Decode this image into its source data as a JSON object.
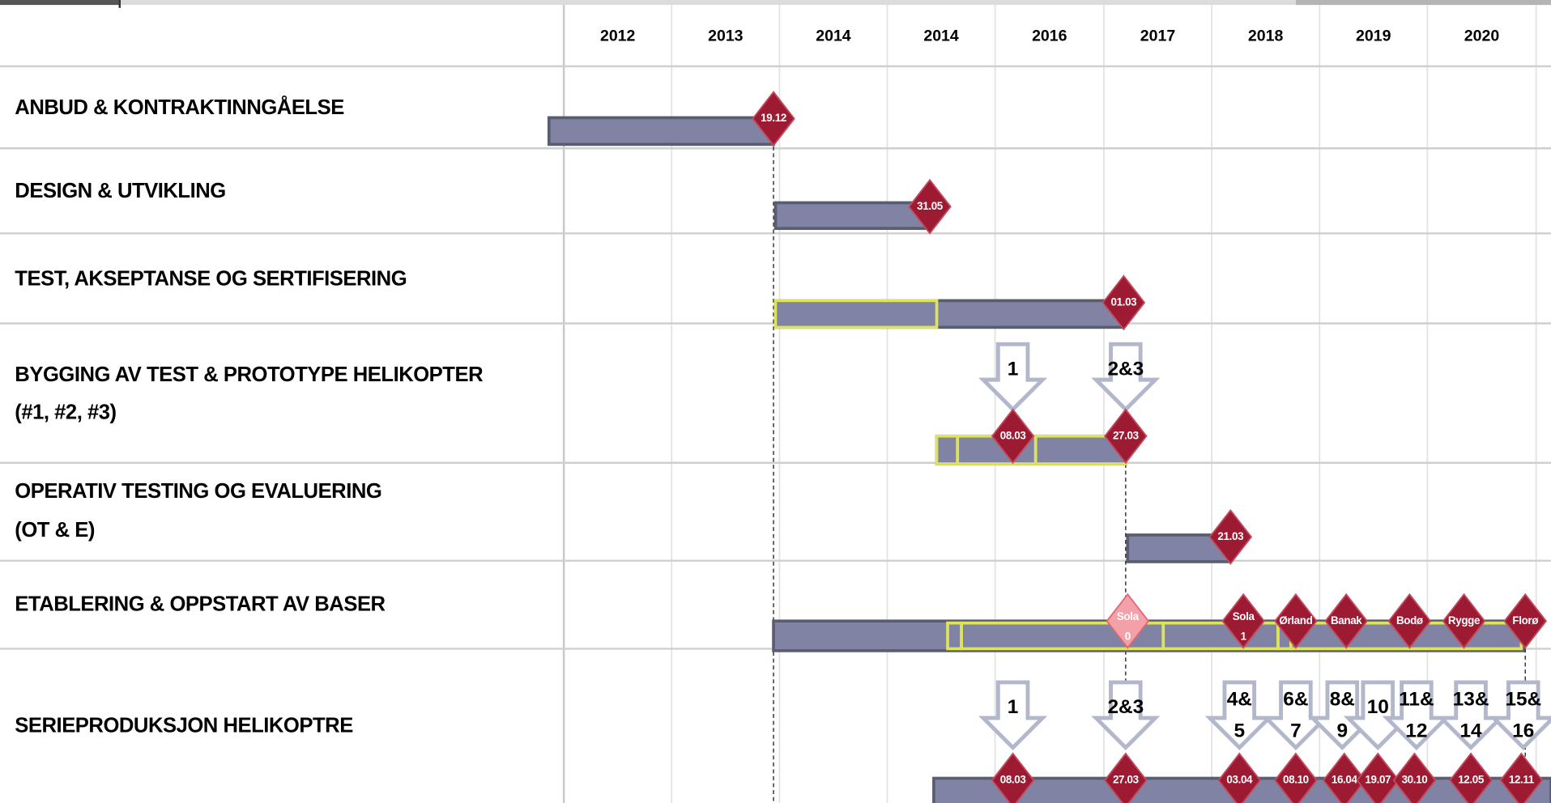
{
  "header": {
    "years": [
      "2012",
      "2013",
      "2014",
      "2014",
      "2016",
      "2017",
      "2018",
      "2019",
      "2020"
    ]
  },
  "rows": [
    {
      "label": [
        "ANBUD & KONTRAKTINNGÅELSE"
      ],
      "milestones": [
        {
          "label": [
            "19.12"
          ]
        }
      ],
      "arrows": []
    },
    {
      "label": [
        "DESIGN & UTVIKLING"
      ],
      "milestones": [
        {
          "label": [
            "31.05"
          ]
        }
      ],
      "arrows": []
    },
    {
      "label": [
        "TEST, AKSEPTANSE OG SERTIFISERING"
      ],
      "milestones": [
        {
          "label": [
            "01.03"
          ]
        }
      ],
      "arrows": []
    },
    {
      "label": [
        "BYGGING  AV TEST & PROTOTYPE HELIKOPTER",
        "(#1, #2, #3)"
      ],
      "milestones": [
        {
          "label": [
            "08.03"
          ]
        },
        {
          "label": [
            "27.03"
          ]
        }
      ],
      "arrows": [
        {
          "label": [
            "1"
          ]
        },
        {
          "label": [
            "2&3"
          ]
        }
      ]
    },
    {
      "label": [
        "OPERATIV TESTING OG EVALUERING",
        "(OT & E)"
      ],
      "milestones": [
        {
          "label": [
            "21.03"
          ]
        }
      ],
      "arrows": []
    },
    {
      "label": [
        "ETABLERING & OPPSTART AV BASER"
      ],
      "milestones": [
        {
          "label": [
            "Sola",
            "0"
          ]
        },
        {
          "label": [
            "Sola",
            "1"
          ]
        },
        {
          "label": [
            "Ørland"
          ]
        },
        {
          "label": [
            "Banak"
          ]
        },
        {
          "label": [
            "Bodø"
          ]
        },
        {
          "label": [
            "Rygge"
          ]
        },
        {
          "label": [
            "Florø"
          ]
        }
      ],
      "arrows": []
    },
    {
      "label": [
        "SERIEPRODUKSJON HELIKOPTRE"
      ],
      "milestones": [
        {
          "label": [
            "08.03"
          ]
        },
        {
          "label": [
            "27.03"
          ]
        },
        {
          "label": [
            "03.04"
          ]
        },
        {
          "label": [
            "08.10"
          ]
        },
        {
          "label": [
            "16.04"
          ]
        },
        {
          "label": [
            "19.07"
          ]
        },
        {
          "label": [
            "30.10"
          ]
        },
        {
          "label": [
            "12.05"
          ]
        },
        {
          "label": [
            "12.11"
          ]
        }
      ],
      "arrows": [
        {
          "label": [
            "1"
          ]
        },
        {
          "label": [
            "2&3"
          ]
        },
        {
          "label": [
            "4&",
            "5"
          ]
        },
        {
          "label": [
            "6&",
            "7"
          ]
        },
        {
          "label": [
            "8&",
            "9"
          ]
        },
        {
          "label": [
            "10"
          ]
        },
        {
          "label": [
            "11&",
            "12"
          ]
        },
        {
          "label": [
            "13&",
            "14"
          ]
        },
        {
          "label": [
            "15&",
            "16"
          ]
        }
      ]
    }
  ]
}
